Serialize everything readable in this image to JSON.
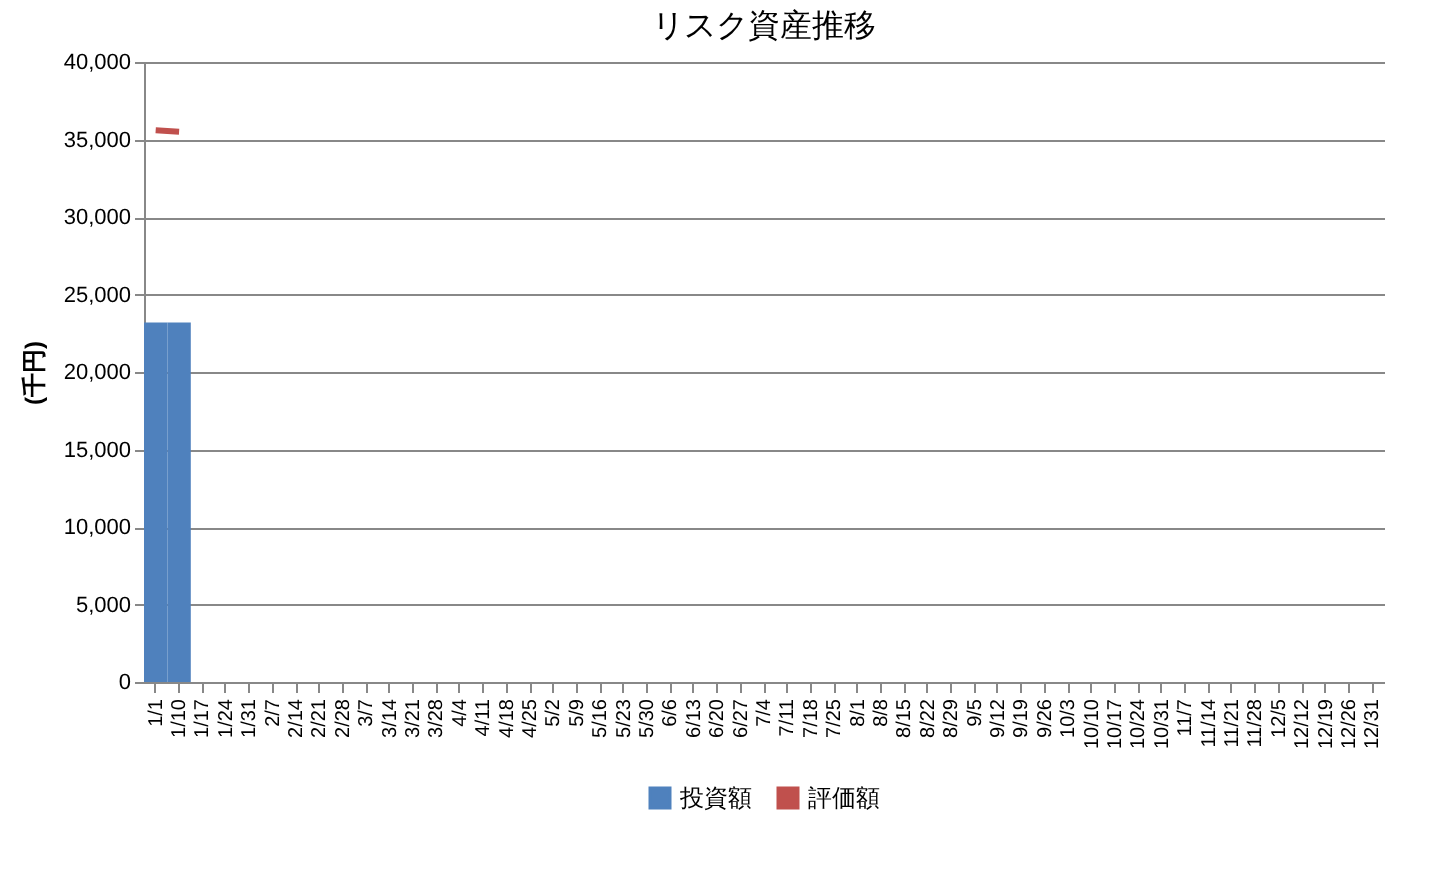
{
  "chart_data": {
    "type": "bar",
    "title": "リスク資産推移",
    "ylabel": "(千円)",
    "categories": [
      "1/1",
      "1/10",
      "1/17",
      "1/24",
      "1/31",
      "2/7",
      "2/14",
      "2/21",
      "2/28",
      "3/7",
      "3/14",
      "3/21",
      "3/28",
      "4/4",
      "4/11",
      "4/18",
      "4/25",
      "5/2",
      "5/9",
      "5/16",
      "5/23",
      "5/30",
      "6/6",
      "6/13",
      "6/20",
      "6/27",
      "7/4",
      "7/11",
      "7/18",
      "7/25",
      "8/1",
      "8/8",
      "8/15",
      "8/22",
      "8/29",
      "9/5",
      "9/12",
      "9/19",
      "9/26",
      "10/3",
      "10/10",
      "10/17",
      "10/24",
      "10/31",
      "11/7",
      "11/14",
      "11/21",
      "11/28",
      "12/5",
      "12/12",
      "12/19",
      "12/26",
      "12/31"
    ],
    "series": [
      {
        "name": "投資額",
        "color": "#4f81bd",
        "values": [
          23200,
          23200,
          null,
          null,
          null,
          null,
          null,
          null,
          null,
          null,
          null,
          null,
          null,
          null,
          null,
          null,
          null,
          null,
          null,
          null,
          null,
          null,
          null,
          null,
          null,
          null,
          null,
          null,
          null,
          null,
          null,
          null,
          null,
          null,
          null,
          null,
          null,
          null,
          null,
          null,
          null,
          null,
          null,
          null,
          null,
          null,
          null,
          null,
          null,
          null,
          null,
          null,
          null
        ]
      },
      {
        "name": "評価額",
        "type": "line",
        "color": "#c0504d",
        "values": [
          35600,
          35500,
          null,
          null,
          null,
          null,
          null,
          null,
          null,
          null,
          null,
          null,
          null,
          null,
          null,
          null,
          null,
          null,
          null,
          null,
          null,
          null,
          null,
          null,
          null,
          null,
          null,
          null,
          null,
          null,
          null,
          null,
          null,
          null,
          null,
          null,
          null,
          null,
          null,
          null,
          null,
          null,
          null,
          null,
          null,
          null,
          null,
          null,
          null,
          null,
          null,
          null,
          null
        ]
      }
    ],
    "ylim": [
      0,
      40000
    ],
    "yticks": [
      0,
      {
        "value": 5000,
        "label": "5,000"
      },
      {
        "value": 10000,
        "label": "10,000"
      },
      {
        "value": 15000,
        "label": "15,000"
      },
      {
        "value": 20000,
        "label": "20,000"
      },
      {
        "value": 25000,
        "label": "25,000"
      },
      {
        "value": 30000,
        "label": "30,000"
      },
      {
        "value": 35000,
        "label": "35,000"
      },
      {
        "value": 40000,
        "label": "40,000"
      }
    ],
    "grid": "y",
    "legend": "bottom"
  }
}
